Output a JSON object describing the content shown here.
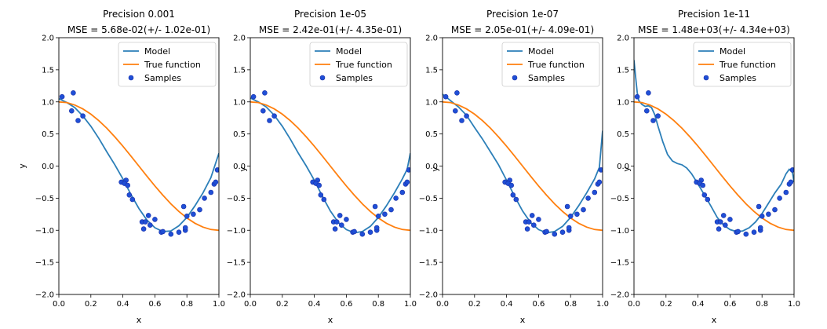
{
  "colors": {
    "model": "#2c7fb8",
    "true_function": "#ff7f0e",
    "samples_fill": "#1f4fd6",
    "samples_edge": "#1a2fa8",
    "axes": "#000000",
    "legend_border": "#cccccc"
  },
  "chart_data": [
    {
      "type": "line",
      "title": "Precision 0.001",
      "subtitle": "MSE = 5.68e-02(+/- 1.02e-01)",
      "xlabel": "x",
      "ylabel": "y",
      "xlim": [
        0.0,
        1.0
      ],
      "ylim": [
        -2.0,
        2.0
      ],
      "x_ticks": [
        "0.0",
        "0.2",
        "0.4",
        "0.6",
        "0.8",
        "1.0"
      ],
      "y_ticks": [
        "−2.0",
        "−1.5",
        "−1.0",
        "−0.5",
        "0.0",
        "0.5",
        "1.0",
        "1.5",
        "2.0"
      ],
      "grid": false,
      "legend_position": "top-right",
      "legend": [
        "Model",
        "True function",
        "Samples"
      ],
      "series": [
        {
          "name": "Model",
          "kind": "line",
          "x": [
            0.0,
            0.05,
            0.1,
            0.15,
            0.2,
            0.25,
            0.3,
            0.35,
            0.4,
            0.45,
            0.5,
            0.55,
            0.6,
            0.65,
            0.7,
            0.75,
            0.8,
            0.85,
            0.9,
            0.95,
            1.0
          ],
          "y": [
            1.05,
            0.99,
            0.91,
            0.78,
            0.62,
            0.43,
            0.22,
            0.02,
            -0.2,
            -0.44,
            -0.66,
            -0.84,
            -0.96,
            -1.02,
            -1.01,
            -0.93,
            -0.8,
            -0.62,
            -0.42,
            -0.18,
            0.2
          ]
        },
        {
          "name": "True function",
          "kind": "line",
          "x": [
            0.0,
            0.05,
            0.1,
            0.15,
            0.2,
            0.25,
            0.3,
            0.35,
            0.4,
            0.45,
            0.5,
            0.55,
            0.6,
            0.65,
            0.7,
            0.75,
            0.8,
            0.85,
            0.9,
            0.95,
            1.0
          ],
          "y": [
            1.0,
            0.989,
            0.951,
            0.891,
            0.809,
            0.707,
            0.588,
            0.454,
            0.309,
            0.156,
            0.0,
            -0.156,
            -0.309,
            -0.454,
            -0.588,
            -0.707,
            -0.809,
            -0.891,
            -0.951,
            -0.988,
            -1.0
          ]
        },
        {
          "name": "Samples",
          "kind": "scatter",
          "x": [
            0.02,
            0.09,
            0.08,
            0.12,
            0.15,
            0.39,
            0.42,
            0.41,
            0.43,
            0.44,
            0.46,
            0.52,
            0.53,
            0.54,
            0.56,
            0.57,
            0.6,
            0.64,
            0.65,
            0.7,
            0.75,
            0.78,
            0.79,
            0.79,
            0.8,
            0.84,
            0.88,
            0.91,
            0.95,
            0.97,
            0.98,
            0.99
          ],
          "y": [
            1.08,
            1.14,
            0.86,
            0.71,
            0.78,
            -0.25,
            -0.22,
            -0.27,
            -0.3,
            -0.45,
            -0.52,
            -0.87,
            -0.98,
            -0.87,
            -0.77,
            -0.92,
            -0.83,
            -1.03,
            -1.02,
            -1.06,
            -1.03,
            -0.63,
            -1.0,
            -0.96,
            -0.78,
            -0.75,
            -0.68,
            -0.5,
            -0.41,
            -0.28,
            -0.25,
            -0.06
          ]
        }
      ]
    },
    {
      "type": "line",
      "title": "Precision 1e-05",
      "subtitle": "MSE = 2.42e-01(+/- 4.35e-01)",
      "xlabel": "x",
      "ylabel": "y",
      "xlim": [
        0.0,
        1.0
      ],
      "ylim": [
        -2.0,
        2.0
      ],
      "x_ticks": [
        "0.0",
        "0.2",
        "0.4",
        "0.6",
        "0.8",
        "1.0"
      ],
      "y_ticks": [
        "−2.0",
        "−1.5",
        "−1.0",
        "−0.5",
        "0.0",
        "0.5",
        "1.0",
        "1.5",
        "2.0"
      ],
      "grid": false,
      "legend_position": "top-right",
      "legend": [
        "Model",
        "True function",
        "Samples"
      ],
      "series": [
        {
          "name": "Model",
          "kind": "line",
          "x": [
            0.0,
            0.05,
            0.1,
            0.15,
            0.2,
            0.25,
            0.3,
            0.35,
            0.4,
            0.45,
            0.5,
            0.55,
            0.6,
            0.65,
            0.7,
            0.75,
            0.8,
            0.85,
            0.9,
            0.95,
            0.98,
            1.0
          ],
          "y": [
            1.06,
            1.0,
            0.92,
            0.79,
            0.62,
            0.42,
            0.2,
            0.0,
            -0.22,
            -0.47,
            -0.7,
            -0.88,
            -0.99,
            -1.04,
            -1.02,
            -0.94,
            -0.8,
            -0.62,
            -0.42,
            -0.2,
            -0.05,
            0.2
          ]
        },
        {
          "name": "True function",
          "kind": "line",
          "x": [
            0.0,
            0.05,
            0.1,
            0.15,
            0.2,
            0.25,
            0.3,
            0.35,
            0.4,
            0.45,
            0.5,
            0.55,
            0.6,
            0.65,
            0.7,
            0.75,
            0.8,
            0.85,
            0.9,
            0.95,
            1.0
          ],
          "y": [
            1.0,
            0.989,
            0.951,
            0.891,
            0.809,
            0.707,
            0.588,
            0.454,
            0.309,
            0.156,
            0.0,
            -0.156,
            -0.309,
            -0.454,
            -0.588,
            -0.707,
            -0.809,
            -0.891,
            -0.951,
            -0.988,
            -1.0
          ]
        },
        {
          "name": "Samples",
          "kind": "scatter",
          "x": [
            0.02,
            0.09,
            0.08,
            0.12,
            0.15,
            0.39,
            0.42,
            0.41,
            0.43,
            0.44,
            0.46,
            0.52,
            0.53,
            0.54,
            0.56,
            0.57,
            0.6,
            0.64,
            0.65,
            0.7,
            0.75,
            0.78,
            0.79,
            0.79,
            0.8,
            0.84,
            0.88,
            0.91,
            0.95,
            0.97,
            0.98,
            0.99
          ],
          "y": [
            1.08,
            1.14,
            0.86,
            0.71,
            0.78,
            -0.25,
            -0.22,
            -0.27,
            -0.3,
            -0.45,
            -0.52,
            -0.87,
            -0.98,
            -0.87,
            -0.77,
            -0.92,
            -0.83,
            -1.03,
            -1.02,
            -1.06,
            -1.03,
            -0.63,
            -1.0,
            -0.96,
            -0.78,
            -0.75,
            -0.68,
            -0.5,
            -0.41,
            -0.28,
            -0.25,
            -0.06
          ]
        }
      ]
    },
    {
      "type": "line",
      "title": "Precision 1e-07",
      "subtitle": "MSE = 2.05e-01(+/- 4.09e-01)",
      "xlabel": "x",
      "ylabel": "y",
      "xlim": [
        0.0,
        1.0
      ],
      "ylim": [
        -2.0,
        2.0
      ],
      "x_ticks": [
        "0.0",
        "0.2",
        "0.4",
        "0.6",
        "0.8",
        "1.0"
      ],
      "y_ticks": [
        "−2.0",
        "−1.5",
        "−1.0",
        "−0.5",
        "0.0",
        "0.5",
        "1.0",
        "1.5",
        "2.0"
      ],
      "grid": false,
      "legend_position": "top-right",
      "legend": [
        "Model",
        "True function",
        "Samples"
      ],
      "series": [
        {
          "name": "Model",
          "kind": "line",
          "x": [
            0.0,
            0.03,
            0.06,
            0.1,
            0.15,
            0.2,
            0.25,
            0.3,
            0.35,
            0.4,
            0.45,
            0.5,
            0.55,
            0.6,
            0.65,
            0.7,
            0.75,
            0.8,
            0.85,
            0.9,
            0.95,
            0.98,
            1.0
          ],
          "y": [
            1.12,
            1.06,
            1.0,
            0.92,
            0.79,
            0.6,
            0.42,
            0.22,
            0.02,
            -0.22,
            -0.47,
            -0.7,
            -0.88,
            -0.99,
            -1.04,
            -1.02,
            -0.94,
            -0.8,
            -0.62,
            -0.42,
            -0.2,
            -0.02,
            0.55
          ]
        },
        {
          "name": "True function",
          "kind": "line",
          "x": [
            0.0,
            0.05,
            0.1,
            0.15,
            0.2,
            0.25,
            0.3,
            0.35,
            0.4,
            0.45,
            0.5,
            0.55,
            0.6,
            0.65,
            0.7,
            0.75,
            0.8,
            0.85,
            0.9,
            0.95,
            1.0
          ],
          "y": [
            1.0,
            0.989,
            0.951,
            0.891,
            0.809,
            0.707,
            0.588,
            0.454,
            0.309,
            0.156,
            0.0,
            -0.156,
            -0.309,
            -0.454,
            -0.588,
            -0.707,
            -0.809,
            -0.891,
            -0.951,
            -0.988,
            -1.0
          ]
        },
        {
          "name": "Samples",
          "kind": "scatter",
          "x": [
            0.02,
            0.09,
            0.08,
            0.12,
            0.15,
            0.39,
            0.42,
            0.41,
            0.43,
            0.44,
            0.46,
            0.52,
            0.53,
            0.54,
            0.56,
            0.57,
            0.6,
            0.64,
            0.65,
            0.7,
            0.75,
            0.78,
            0.79,
            0.79,
            0.8,
            0.84,
            0.88,
            0.91,
            0.95,
            0.97,
            0.98,
            0.99
          ],
          "y": [
            1.08,
            1.14,
            0.86,
            0.71,
            0.78,
            -0.25,
            -0.22,
            -0.27,
            -0.3,
            -0.45,
            -0.52,
            -0.87,
            -0.98,
            -0.87,
            -0.77,
            -0.92,
            -0.83,
            -1.03,
            -1.02,
            -1.06,
            -1.03,
            -0.63,
            -1.0,
            -0.96,
            -0.78,
            -0.75,
            -0.68,
            -0.5,
            -0.41,
            -0.28,
            -0.25,
            -0.06
          ]
        }
      ]
    },
    {
      "type": "line",
      "title": "Precision 1e-11",
      "subtitle": "MSE = 1.48e+03(+/- 4.34e+03)",
      "xlabel": "x",
      "ylabel": "y",
      "xlim": [
        0.0,
        1.0
      ],
      "ylim": [
        -2.0,
        2.0
      ],
      "x_ticks": [
        "0.0",
        "0.2",
        "0.4",
        "0.6",
        "0.8",
        "1.0"
      ],
      "y_ticks": [
        "−2.0",
        "−1.5",
        "−1.0",
        "−0.5",
        "0.0",
        "0.5",
        "1.0",
        "1.5",
        "2.0"
      ],
      "grid": false,
      "legend_position": "top-right",
      "legend": [
        "Model",
        "True function",
        "Samples"
      ],
      "series": [
        {
          "name": "Model",
          "kind": "line",
          "x": [
            0.0,
            0.01,
            0.02,
            0.03,
            0.05,
            0.07,
            0.09,
            0.11,
            0.13,
            0.15,
            0.18,
            0.21,
            0.24,
            0.27,
            0.3,
            0.33,
            0.36,
            0.4,
            0.44,
            0.48,
            0.52,
            0.56,
            0.6,
            0.64,
            0.68,
            0.72,
            0.76,
            0.8,
            0.84,
            0.88,
            0.92,
            0.95,
            0.97,
            0.99,
            1.0
          ],
          "y": [
            1.65,
            1.4,
            1.15,
            1.02,
            0.96,
            0.93,
            0.94,
            0.91,
            0.8,
            0.62,
            0.38,
            0.18,
            0.08,
            0.04,
            0.02,
            -0.03,
            -0.12,
            -0.28,
            -0.45,
            -0.62,
            -0.8,
            -0.92,
            -0.99,
            -1.02,
            -1.01,
            -0.96,
            -0.87,
            -0.74,
            -0.58,
            -0.42,
            -0.28,
            -0.12,
            -0.05,
            -0.1,
            -0.25
          ]
        },
        {
          "name": "True function",
          "kind": "line",
          "x": [
            0.0,
            0.05,
            0.1,
            0.15,
            0.2,
            0.25,
            0.3,
            0.35,
            0.4,
            0.45,
            0.5,
            0.55,
            0.6,
            0.65,
            0.7,
            0.75,
            0.8,
            0.85,
            0.9,
            0.95,
            1.0
          ],
          "y": [
            1.0,
            0.989,
            0.951,
            0.891,
            0.809,
            0.707,
            0.588,
            0.454,
            0.309,
            0.156,
            0.0,
            -0.156,
            -0.309,
            -0.454,
            -0.588,
            -0.707,
            -0.809,
            -0.891,
            -0.951,
            -0.988,
            -1.0
          ]
        },
        {
          "name": "Samples",
          "kind": "scatter",
          "x": [
            0.02,
            0.09,
            0.08,
            0.12,
            0.15,
            0.39,
            0.42,
            0.41,
            0.43,
            0.44,
            0.46,
            0.52,
            0.53,
            0.54,
            0.56,
            0.57,
            0.6,
            0.64,
            0.65,
            0.7,
            0.75,
            0.78,
            0.79,
            0.79,
            0.8,
            0.84,
            0.88,
            0.91,
            0.95,
            0.97,
            0.98,
            0.99
          ],
          "y": [
            1.08,
            1.14,
            0.86,
            0.71,
            0.78,
            -0.25,
            -0.22,
            -0.27,
            -0.3,
            -0.45,
            -0.52,
            -0.87,
            -0.98,
            -0.87,
            -0.77,
            -0.92,
            -0.83,
            -1.03,
            -1.02,
            -1.06,
            -1.03,
            -0.63,
            -1.0,
            -0.96,
            -0.78,
            -0.75,
            -0.68,
            -0.5,
            -0.41,
            -0.28,
            -0.25,
            -0.06
          ]
        }
      ]
    }
  ]
}
